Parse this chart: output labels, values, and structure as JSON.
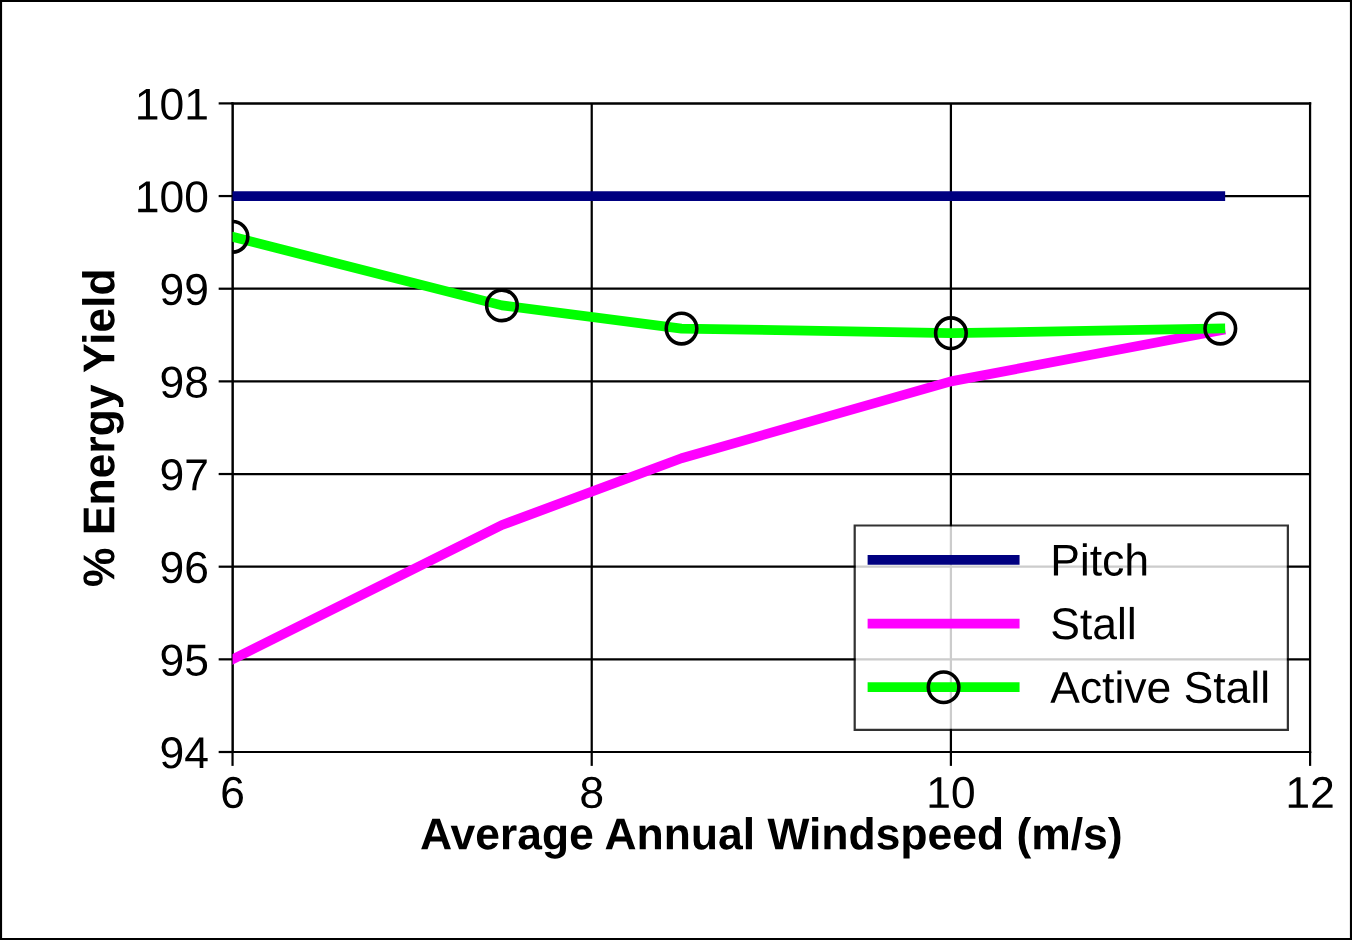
{
  "chart_data": {
    "type": "line",
    "xlabel": "Average Annual Windspeed (m/s)",
    "ylabel": "% Energy Yield",
    "xlim": [
      6,
      12
    ],
    "xticks": [
      6,
      8,
      10,
      12
    ],
    "ylim": [
      94,
      101
    ],
    "yticks": [
      94,
      95,
      96,
      97,
      98,
      99,
      100,
      101
    ],
    "grid": true,
    "legend": "bottom right",
    "series": [
      {
        "name": "Pitch",
        "color": "#000080",
        "marker": "none",
        "x": [
          6,
          7.5,
          8.5,
          10,
          11.5
        ],
        "values": [
          100,
          100,
          100,
          100,
          100
        ]
      },
      {
        "name": "Stall",
        "color": "#ff00ff",
        "marker": "none",
        "x": [
          6,
          7.5,
          8.5,
          10,
          11.5
        ],
        "values": [
          95.0,
          96.45,
          97.17,
          98.0,
          98.55
        ]
      },
      {
        "name": "Active Stall",
        "color": "#00ff00",
        "marker": "circle",
        "x": [
          6,
          7.5,
          8.5,
          10,
          11.5
        ],
        "values": [
          99.56,
          98.82,
          98.57,
          98.52,
          98.57
        ]
      }
    ]
  }
}
